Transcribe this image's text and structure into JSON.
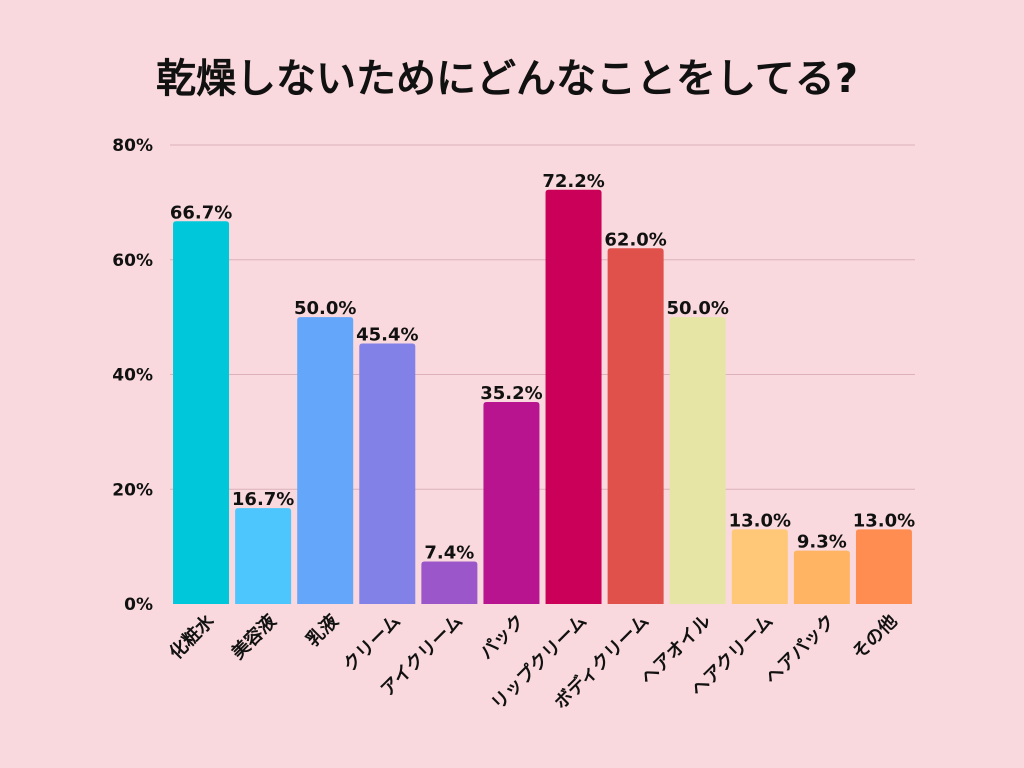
{
  "chart_data": {
    "type": "bar",
    "title": "乾燥しないためにどんなことをしてる?",
    "xlabel": "",
    "ylabel": "",
    "ylim": [
      0,
      80
    ],
    "yticks": [
      "0%",
      "20%",
      "40%",
      "60%",
      "80%"
    ],
    "ytick_values": [
      0,
      20,
      40,
      60,
      80
    ],
    "grid": true,
    "categories": [
      "化粧水",
      "美容液",
      "乳液",
      "クリーム",
      "アイクリーム",
      "パック",
      "リップクリーム",
      "ボディクリーム",
      "ヘアオイル",
      "ヘアクリーム",
      "ヘアパック",
      "その他"
    ],
    "values": [
      66.7,
      16.7,
      50.0,
      45.4,
      7.4,
      35.2,
      72.2,
      62.0,
      50.0,
      13.0,
      9.3,
      13.0
    ],
    "data_labels": [
      "66.7%",
      "16.7%",
      "50.0%",
      "45.4%",
      "7.4%",
      "35.2%",
      "72.2%",
      "62.0%",
      "50.0%",
      "13.0%",
      "9.3%",
      "13.0%"
    ],
    "colors": [
      "#00c8da",
      "#4cc6fd",
      "#64a6fa",
      "#8281e8",
      "#9b56c9",
      "#b8148f",
      "#cb0058",
      "#e0514b",
      "#e6e5a6",
      "#fec878",
      "#ffb463",
      "#ff8d51"
    ]
  }
}
